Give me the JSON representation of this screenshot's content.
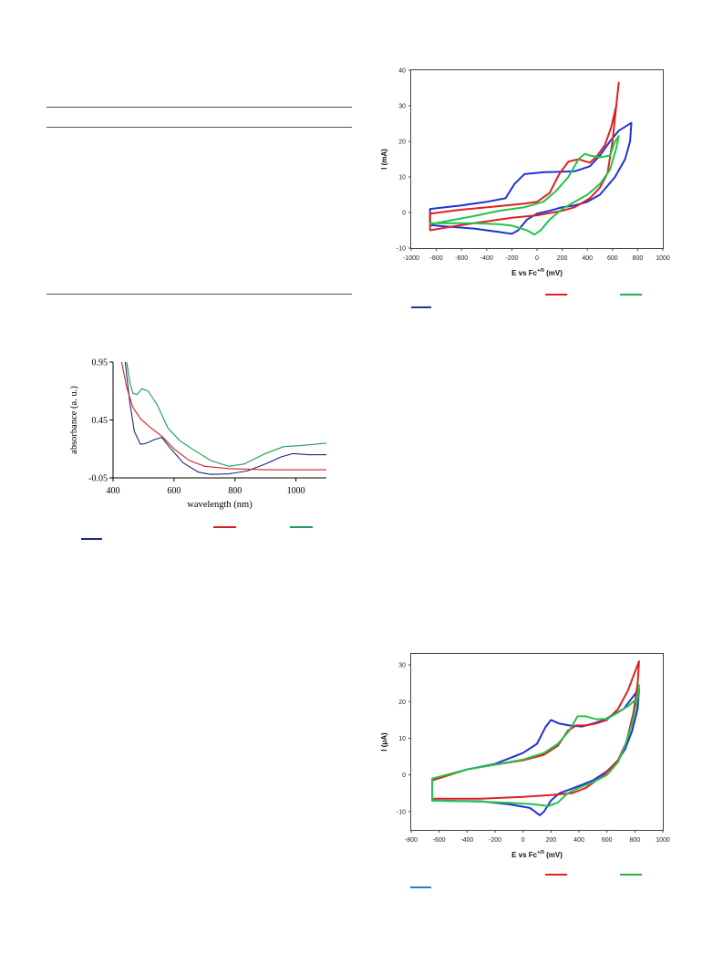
{
  "table_rules": {
    "count": 3
  },
  "colors": {
    "red": "#e02020",
    "green": "#22c34a",
    "blue": "#1f33d6",
    "navy": "#1c2a7a",
    "uv_red": "#d81e1e",
    "uv_green": "#1e9a5a"
  },
  "figures": [
    {
      "id": "cv1",
      "chart_data": {
        "type": "line",
        "xlabel_main": "E vs Fc",
        "xlabel_sup": "+/0",
        "xlabel_unit": "(mV)",
        "ylabel": "I (mA)",
        "xlim": [
          -1000,
          1000
        ],
        "ylim": [
          -10,
          40
        ],
        "xticks": [
          "-1000",
          "-800",
          "-600",
          "-400",
          "-200",
          "0",
          "200",
          "400",
          "600",
          "800",
          "1000"
        ],
        "yticks": [
          "-10",
          "0",
          "10",
          "20",
          "30",
          "40"
        ],
        "series": [
          {
            "color": "#1f33d6",
            "points": [
              [
                -850,
                1
              ],
              [
                -600,
                2
              ],
              [
                -400,
                3
              ],
              [
                -250,
                4
              ],
              [
                -180,
                8
              ],
              [
                -100,
                10.8
              ],
              [
                50,
                11.3
              ],
              [
                200,
                11.5
              ],
              [
                300,
                11.6
              ],
              [
                420,
                13
              ],
              [
                500,
                16
              ],
              [
                580,
                20
              ],
              [
                650,
                23
              ],
              [
                750,
                25.2
              ],
              [
                740,
                20
              ],
              [
                700,
                15
              ],
              [
                620,
                10
              ],
              [
                500,
                5
              ],
              [
                400,
                3
              ],
              [
                300,
                2
              ],
              [
                200,
                1.5
              ],
              [
                100,
                0.5
              ],
              [
                0,
                -0.3
              ],
              [
                -80,
                -2
              ],
              [
                -150,
                -5
              ],
              [
                -200,
                -6
              ],
              [
                -300,
                -5.5
              ],
              [
                -500,
                -4.5
              ],
              [
                -700,
                -4
              ],
              [
                -850,
                -3.5
              ]
            ]
          },
          {
            "color": "#e02020",
            "points": [
              [
                -850,
                -0.3
              ],
              [
                -600,
                0.8
              ],
              [
                -300,
                1.8
              ],
              [
                -100,
                2.5
              ],
              [
                0,
                3
              ],
              [
                100,
                5.5
              ],
              [
                180,
                11
              ],
              [
                250,
                14.3
              ],
              [
                330,
                15
              ],
              [
                420,
                14
              ],
              [
                480,
                16
              ],
              [
                540,
                19
              ],
              [
                590,
                24
              ],
              [
                630,
                30
              ],
              [
                650,
                36.5
              ],
              [
                630,
                30
              ],
              [
                600,
                20
              ],
              [
                560,
                11
              ],
              [
                500,
                7
              ],
              [
                420,
                4
              ],
              [
                300,
                1.5
              ],
              [
                200,
                0.5
              ],
              [
                0,
                -0.8
              ],
              [
                -200,
                -1.5
              ],
              [
                -400,
                -2.5
              ],
              [
                -600,
                -3.5
              ],
              [
                -850,
                -5
              ]
            ]
          },
          {
            "color": "#22c34a",
            "points": [
              [
                -850,
                -3
              ],
              [
                -500,
                -3
              ],
              [
                -300,
                -3.3
              ],
              [
                -200,
                -3.7
              ],
              [
                -80,
                -5
              ],
              [
                -20,
                -6.2
              ],
              [
                30,
                -5
              ],
              [
                100,
                -2
              ],
              [
                200,
                1
              ],
              [
                300,
                3
              ],
              [
                400,
                5
              ],
              [
                500,
                8
              ],
              [
                580,
                12
              ],
              [
                630,
                18
              ],
              [
                650,
                21.5
              ],
              [
                620,
                20
              ],
              [
                580,
                16
              ],
              [
                500,
                15.5
              ],
              [
                420,
                16
              ],
              [
                380,
                16.5
              ],
              [
                330,
                15
              ],
              [
                250,
                10
              ],
              [
                150,
                6
              ],
              [
                50,
                3
              ],
              [
                -100,
                1.5
              ],
              [
                -300,
                0.5
              ],
              [
                -500,
                -1
              ],
              [
                -850,
                -3.3
              ]
            ]
          }
        ]
      }
    },
    {
      "id": "uv",
      "chart_data": {
        "type": "line",
        "xlabel": "wavelength (nm)",
        "ylabel": "absorbance (a. u.)",
        "xlim": [
          400,
          1100
        ],
        "ylim": [
          -0.05,
          0.95
        ],
        "xticks": [
          "400",
          "600",
          "800",
          "1000"
        ],
        "yticks": [
          "-0.05",
          "0.45",
          "0.95"
        ],
        "series": [
          {
            "color": "#1c2a7a",
            "points": [
              [
                440,
                0.95
              ],
              [
                455,
                0.6
              ],
              [
                470,
                0.35
              ],
              [
                490,
                0.24
              ],
              [
                510,
                0.25
              ],
              [
                535,
                0.28
              ],
              [
                560,
                0.3
              ],
              [
                590,
                0.2
              ],
              [
                630,
                0.08
              ],
              [
                680,
                0.0
              ],
              [
                720,
                -0.02
              ],
              [
                780,
                -0.015
              ],
              [
                840,
                0.01
              ],
              [
                900,
                0.07
              ],
              [
                950,
                0.13
              ],
              [
                990,
                0.16
              ],
              [
                1040,
                0.15
              ],
              [
                1100,
                0.15
              ]
            ]
          },
          {
            "color": "#d81e1e",
            "points": [
              [
                428,
                0.95
              ],
              [
                445,
                0.73
              ],
              [
                465,
                0.56
              ],
              [
                490,
                0.46
              ],
              [
                520,
                0.39
              ],
              [
                560,
                0.31
              ],
              [
                600,
                0.2
              ],
              [
                650,
                0.1
              ],
              [
                700,
                0.05
              ],
              [
                780,
                0.03
              ],
              [
                900,
                0.02
              ],
              [
                1000,
                0.02
              ],
              [
                1100,
                0.02
              ]
            ]
          },
          {
            "color": "#1e9a5a",
            "points": [
              [
                445,
                0.95
              ],
              [
                455,
                0.78
              ],
              [
                465,
                0.68
              ],
              [
                478,
                0.67
              ],
              [
                495,
                0.72
              ],
              [
                515,
                0.7
              ],
              [
                545,
                0.58
              ],
              [
                580,
                0.38
              ],
              [
                620,
                0.27
              ],
              [
                660,
                0.2
              ],
              [
                720,
                0.1
              ],
              [
                780,
                0.05
              ],
              [
                830,
                0.07
              ],
              [
                900,
                0.16
              ],
              [
                960,
                0.22
              ],
              [
                1020,
                0.23
              ],
              [
                1060,
                0.24
              ],
              [
                1100,
                0.25
              ]
            ]
          }
        ]
      }
    },
    {
      "id": "cv2",
      "chart_data": {
        "type": "line",
        "xlabel_main": "E vs Fc",
        "xlabel_sup": "+/0",
        "xlabel_unit": "(mV)",
        "ylabel": "I (μA)",
        "xlim": [
          -800,
          1000
        ],
        "ylim": [
          -15,
          33
        ],
        "xticks": [
          "-800",
          "-600",
          "-400",
          "-200",
          "0",
          "200",
          "400",
          "600",
          "800",
          "1000"
        ],
        "yticks": [
          "-10",
          "0",
          "10",
          "20",
          "30"
        ],
        "series": [
          {
            "color": "#1f33d6",
            "points": [
              [
                -650,
                -1.2
              ],
              [
                -400,
                1.5
              ],
              [
                -200,
                3
              ],
              [
                0,
                6
              ],
              [
                100,
                8.5
              ],
              [
                160,
                13
              ],
              [
                200,
                15
              ],
              [
                260,
                14
              ],
              [
                330,
                13.5
              ],
              [
                420,
                13.2
              ],
              [
                500,
                14
              ],
              [
                580,
                15
              ],
              [
                650,
                16.5
              ],
              [
                720,
                18
              ],
              [
                800,
                22
              ],
              [
                830,
                23.5
              ],
              [
                820,
                18
              ],
              [
                780,
                12
              ],
              [
                730,
                7
              ],
              [
                680,
                4
              ],
              [
                600,
                1
              ],
              [
                500,
                -1.5
              ],
              [
                400,
                -3
              ],
              [
                260,
                -5
              ],
              [
                200,
                -7
              ],
              [
                150,
                -10
              ],
              [
                120,
                -11
              ],
              [
                50,
                -9
              ],
              [
                -100,
                -8
              ],
              [
                -300,
                -7.2
              ],
              [
                -650,
                -7
              ]
            ]
          },
          {
            "color": "#e02020",
            "points": [
              [
                -650,
                -1.5
              ],
              [
                -400,
                1.5
              ],
              [
                -200,
                2.8
              ],
              [
                0,
                4
              ],
              [
                150,
                5.5
              ],
              [
                250,
                8
              ],
              [
                320,
                12
              ],
              [
                380,
                13.5
              ],
              [
                450,
                13.5
              ],
              [
                520,
                14
              ],
              [
                600,
                15
              ],
              [
                680,
                18
              ],
              [
                750,
                23
              ],
              [
                800,
                28
              ],
              [
                830,
                31
              ],
              [
                820,
                25
              ],
              [
                790,
                17
              ],
              [
                740,
                9
              ],
              [
                680,
                4
              ],
              [
                580,
                0
              ],
              [
                450,
                -3.5
              ],
              [
                350,
                -5
              ],
              [
                200,
                -5.5
              ],
              [
                0,
                -6
              ],
              [
                -300,
                -6.5
              ],
              [
                -650,
                -6.5
              ]
            ]
          },
          {
            "color": "#22c34a",
            "points": [
              [
                -650,
                -1
              ],
              [
                -400,
                1.5
              ],
              [
                -200,
                2.8
              ],
              [
                0,
                4.2
              ],
              [
                150,
                6
              ],
              [
                250,
                8.5
              ],
              [
                330,
                12
              ],
              [
                390,
                16
              ],
              [
                450,
                16
              ],
              [
                520,
                15.2
              ],
              [
                600,
                15.3
              ],
              [
                680,
                17
              ],
              [
                760,
                19
              ],
              [
                820,
                21
              ],
              [
                830,
                24.5
              ],
              [
                815,
                20
              ],
              [
                780,
                14
              ],
              [
                730,
                8
              ],
              [
                680,
                3.5
              ],
              [
                600,
                0
              ],
              [
                500,
                -2
              ],
              [
                400,
                -3.5
              ],
              [
                320,
                -5
              ],
              [
                250,
                -7.5
              ],
              [
                180,
                -8.5
              ],
              [
                80,
                -8
              ],
              [
                -100,
                -7.6
              ],
              [
                -300,
                -7.3
              ],
              [
                -650,
                -7
              ]
            ]
          }
        ]
      }
    }
  ],
  "legends": [
    {
      "color": "#1c3a8c"
    },
    {
      "color": "#e02020"
    },
    {
      "color": "#22b04a"
    },
    {
      "color": "#1c2a7a"
    },
    {
      "color": "#d81e1e"
    },
    {
      "color": "#1e9a5a"
    },
    {
      "color": "#2a7ad6"
    },
    {
      "color": "#e02020"
    },
    {
      "color": "#22b04a"
    }
  ]
}
